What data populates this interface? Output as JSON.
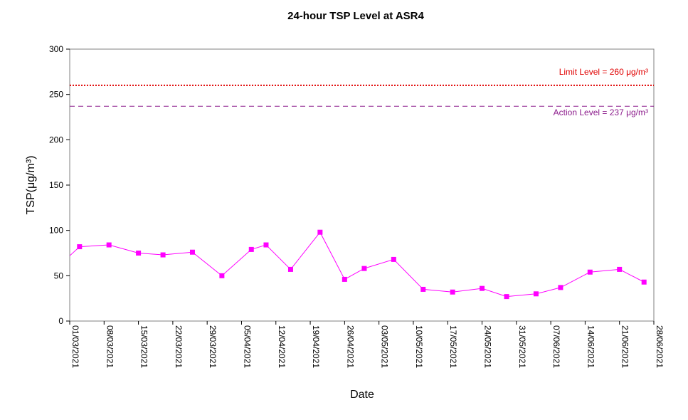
{
  "chart_data": {
    "type": "line",
    "title": "24-hour TSP Level at ASR4",
    "xlabel": "Date",
    "ylabel": "TSP(μg/m³)",
    "ylim": [
      0,
      300
    ],
    "yticks": [
      0,
      50,
      100,
      150,
      200,
      250,
      300
    ],
    "xlim": [
      "2021-03-01",
      "2021-06-28"
    ],
    "xticks": [
      "01/03/2021",
      "08/03/2021",
      "15/03/2021",
      "22/03/2021",
      "29/03/2021",
      "05/04/2021",
      "12/04/2021",
      "19/04/2021",
      "26/04/2021",
      "03/05/2021",
      "10/05/2021",
      "17/05/2021",
      "24/05/2021",
      "31/05/2021",
      "07/06/2021",
      "14/06/2021",
      "21/06/2021",
      "28/06/2021"
    ],
    "grid": false,
    "series": [
      {
        "color": "#ff00ff",
        "marker": "square",
        "points": [
          {
            "x": "2021-03-03",
            "y": 82
          },
          {
            "x": "2021-03-09",
            "y": 84
          },
          {
            "x": "2021-03-15",
            "y": 75
          },
          {
            "x": "2021-03-20",
            "y": 73
          },
          {
            "x": "2021-03-26",
            "y": 76
          },
          {
            "x": "2021-04-01",
            "y": 50
          },
          {
            "x": "2021-04-07",
            "y": 79
          },
          {
            "x": "2021-04-10",
            "y": 84
          },
          {
            "x": "2021-04-15",
            "y": 57
          },
          {
            "x": "2021-04-21",
            "y": 98
          },
          {
            "x": "2021-04-26",
            "y": 46
          },
          {
            "x": "2021-04-30",
            "y": 58
          },
          {
            "x": "2021-05-06",
            "y": 68
          },
          {
            "x": "2021-05-12",
            "y": 35
          },
          {
            "x": "2021-05-18",
            "y": 32
          },
          {
            "x": "2021-05-24",
            "y": 36
          },
          {
            "x": "2021-05-29",
            "y": 27
          },
          {
            "x": "2021-06-04",
            "y": 30
          },
          {
            "x": "2021-06-09",
            "y": 37
          },
          {
            "x": "2021-06-15",
            "y": 54
          },
          {
            "x": "2021-06-21",
            "y": 57
          },
          {
            "x": "2021-06-26",
            "y": 43
          }
        ],
        "leading_value": 72
      }
    ],
    "reference_lines": [
      {
        "label": "Limit Level  = 260 μg/m³",
        "y": 260,
        "color": "#e00000",
        "style": "dotted"
      },
      {
        "label": "Action Level  = 237 μg/m³",
        "y": 237,
        "color": "#8b1a8b",
        "style": "dashed"
      }
    ]
  }
}
